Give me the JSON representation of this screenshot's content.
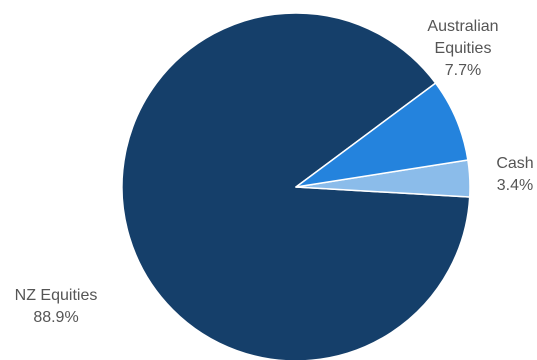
{
  "chart_data": {
    "type": "pie",
    "title": "",
    "legend": "none",
    "slices": [
      {
        "label": "NZ Equities",
        "value": 88.9,
        "display": "88.9%",
        "color": "#153f6a"
      },
      {
        "label": "Cash",
        "value": 3.4,
        "display": "3.4%",
        "color": "#8bbcea"
      },
      {
        "label": "Australian Equities",
        "value": 7.7,
        "display": "7.7%",
        "color": "#2483dd"
      }
    ]
  }
}
